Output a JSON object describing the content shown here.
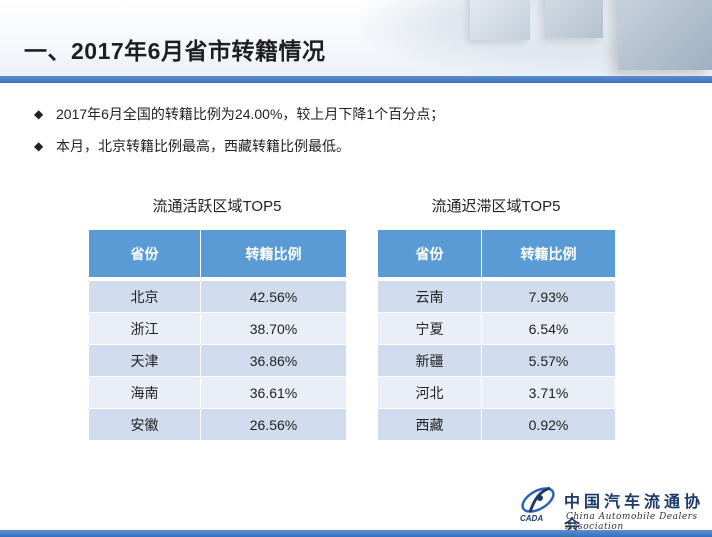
{
  "header": {
    "title": "一、2017年6月省市转籍情况"
  },
  "bullets": [
    {
      "mark": "◆",
      "text": "2017年6月全国的转籍比例为24.00%，较上月下降1个百分点；"
    },
    {
      "mark": "◆",
      "text": "本月，北京转籍比例最高，西藏转籍比例最低。"
    }
  ],
  "active_table": {
    "caption": "流通活跃区域TOP5",
    "headers": [
      "省份",
      "转籍比例"
    ],
    "rows": [
      [
        "北京",
        "42.56%"
      ],
      [
        "浙江",
        "38.70%"
      ],
      [
        "天津",
        "36.86%"
      ],
      [
        "海南",
        "36.61%"
      ],
      [
        "安徽",
        "26.56%"
      ]
    ]
  },
  "slow_table": {
    "caption": "流通迟滞区域TOP5",
    "headers": [
      "省份",
      "转籍比例"
    ],
    "rows": [
      [
        "云南",
        "7.93%"
      ],
      [
        "宁夏",
        "6.54%"
      ],
      [
        "新疆",
        "5.57%"
      ],
      [
        "河北",
        "3.71%"
      ],
      [
        "西藏",
        "0.92%"
      ]
    ]
  },
  "logo": {
    "mark_label": "CADA",
    "name_cn": "中国汽车流通协会",
    "name_en": "China Automobile Dealers Association"
  },
  "colors": {
    "header_fill": "#5b9bd5",
    "row_dark": "#d0dbed",
    "row_light": "#e9eef7",
    "accent_line": "#3a6fb8"
  }
}
